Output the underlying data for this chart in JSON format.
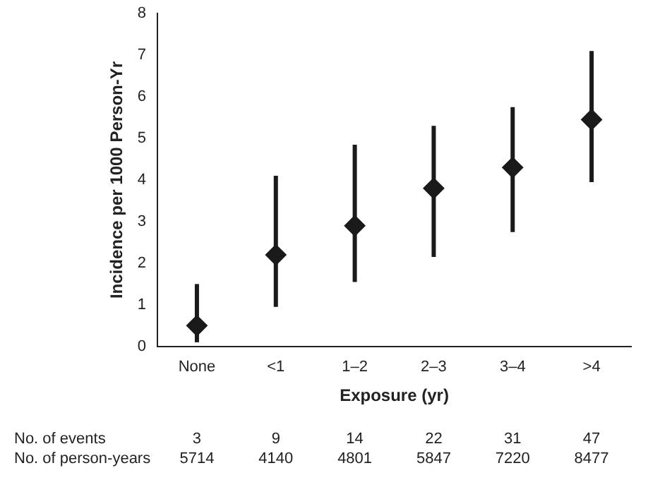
{
  "chart_data": {
    "type": "scatter",
    "xlabel": "Exposure (yr)",
    "ylabel": "Incidence per 1000 Person-Yr",
    "categories": [
      "None",
      "<1",
      "1–2",
      "2–3",
      "3–4",
      ">4"
    ],
    "series": [
      {
        "color": "#1a1a1a",
        "values": [
          0.5,
          2.2,
          2.9,
          3.8,
          4.3,
          5.45
        ],
        "errors": [
          [
            0.1,
            1.5
          ],
          [
            0.95,
            4.1
          ],
          [
            1.55,
            4.85
          ],
          [
            2.15,
            5.3
          ],
          [
            2.75,
            5.75
          ],
          [
            3.95,
            7.1
          ]
        ]
      }
    ],
    "ylim": [
      0,
      8
    ],
    "yticks": [
      0,
      1,
      2,
      3,
      4,
      5,
      6,
      7,
      8
    ],
    "grid": false,
    "legend": false,
    "marker": "diamond",
    "annotations": [
      "No. of events",
      "3",
      "9",
      "14",
      "22",
      "31",
      "47",
      "No. of person-years",
      "5714",
      "4140",
      "4801",
      "5847",
      "7220",
      "8477"
    ]
  }
}
